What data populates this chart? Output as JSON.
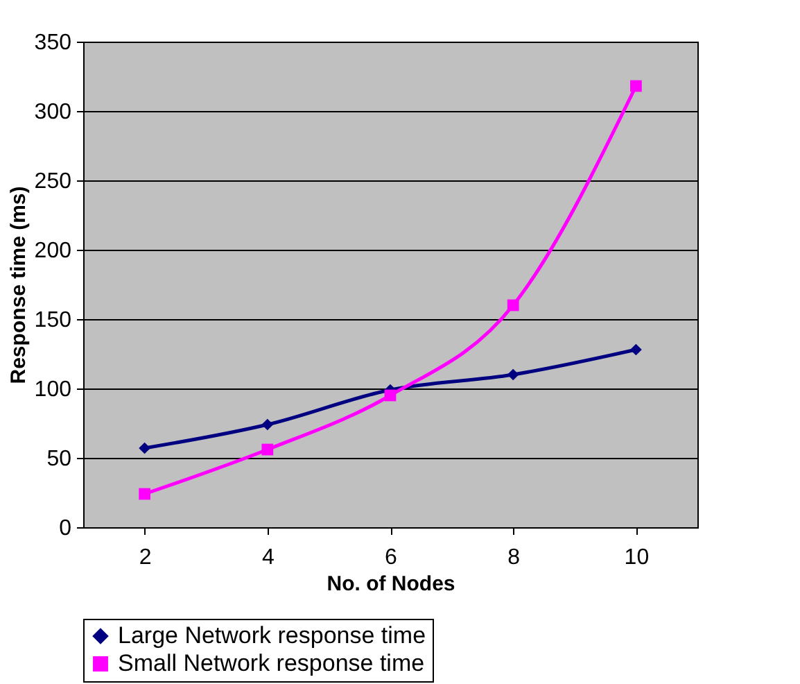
{
  "chart_data": {
    "type": "line",
    "xlabel": "No. of Nodes",
    "ylabel": "Response time (ms)",
    "categories": [
      "2",
      "4",
      "6",
      "8",
      "10"
    ],
    "series": [
      {
        "name": "Large Network response time",
        "color": "#000080",
        "marker": "diamond",
        "values": [
          57,
          74,
          99,
          110,
          128
        ]
      },
      {
        "name": "Small Network response time",
        "color": "#ff00ff",
        "marker": "square",
        "values": [
          24,
          56,
          95,
          160,
          318
        ]
      }
    ],
    "ylim": [
      0,
      350
    ],
    "yticks": [
      0,
      50,
      100,
      150,
      200,
      250,
      300,
      350
    ],
    "grid": "y",
    "legend": "bottom",
    "line_style": "solid"
  }
}
